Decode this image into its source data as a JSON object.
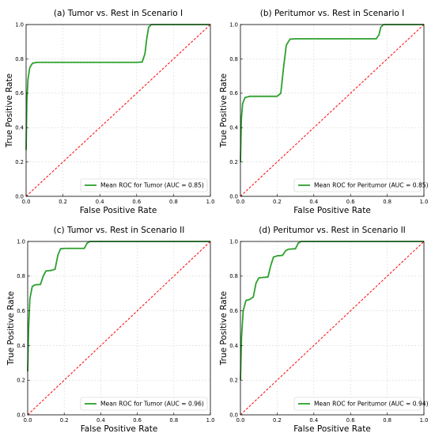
{
  "chart_data": [
    {
      "type": "line",
      "title": "(a) Tumor vs. Rest in Scenario I",
      "xlabel": "False Positive Rate",
      "ylabel": "True Positive Rate",
      "xlim": [
        0,
        1
      ],
      "ylim": [
        0,
        1
      ],
      "xticks": [
        "0.0",
        "0.2",
        "0.4",
        "0.6",
        "0.8",
        "1.0"
      ],
      "yticks": [
        "0.0",
        "0.2",
        "0.4",
        "0.6",
        "0.8",
        "1.0"
      ],
      "grid": true,
      "legend_position": "lower-right",
      "series": [
        {
          "name": "Mean ROC for Tumor (AUC = 0.85)",
          "color": "#2ca02c",
          "points": [
            [
              0,
              0.27
            ],
            [
              0.004,
              0.55
            ],
            [
              0.01,
              0.68
            ],
            [
              0.02,
              0.75
            ],
            [
              0.035,
              0.775
            ],
            [
              0.06,
              0.78
            ],
            [
              0.2,
              0.78
            ],
            [
              0.4,
              0.78
            ],
            [
              0.6,
              0.78
            ],
            [
              0.63,
              0.782
            ],
            [
              0.645,
              0.83
            ],
            [
              0.655,
              0.92
            ],
            [
              0.665,
              0.985
            ],
            [
              0.68,
              1.0
            ],
            [
              1.0,
              1.0
            ]
          ]
        }
      ],
      "chance_line_color": "#ff0000"
    },
    {
      "type": "line",
      "title": "(b) Peritumor vs. Rest in Scenario I",
      "xlabel": "False Positive Rate",
      "ylabel": "True Positive Rate",
      "xlim": [
        0,
        1
      ],
      "ylim": [
        0,
        1
      ],
      "xticks": [
        "0.0",
        "0.2",
        "0.4",
        "0.6",
        "0.8",
        "1.0"
      ],
      "yticks": [
        "0.0",
        "0.2",
        "0.4",
        "0.6",
        "0.8",
        "1.0"
      ],
      "grid": true,
      "legend_position": "lower-right",
      "series": [
        {
          "name": "Mean ROC for Peritumor (AUC = 0.85)",
          "color": "#2ca02c",
          "points": [
            [
              0,
              0.2
            ],
            [
              0.005,
              0.45
            ],
            [
              0.012,
              0.54
            ],
            [
              0.025,
              0.575
            ],
            [
              0.05,
              0.582
            ],
            [
              0.2,
              0.582
            ],
            [
              0.22,
              0.6
            ],
            [
              0.235,
              0.75
            ],
            [
              0.25,
              0.88
            ],
            [
              0.27,
              0.915
            ],
            [
              0.3,
              0.917
            ],
            [
              0.5,
              0.917
            ],
            [
              0.74,
              0.917
            ],
            [
              0.755,
              0.94
            ],
            [
              0.765,
              0.985
            ],
            [
              0.78,
              1.0
            ],
            [
              1.0,
              1.0
            ]
          ]
        }
      ],
      "chance_line_color": "#ff0000"
    },
    {
      "type": "line",
      "title": "(c) Tumor vs. Rest in Scenario II",
      "xlabel": "False Positive Rate",
      "ylabel": "True Positive Rate",
      "xlim": [
        0,
        1
      ],
      "ylim": [
        0,
        1
      ],
      "xticks": [
        "0.0",
        "0.2",
        "0.4",
        "0.6",
        "0.8",
        "1.0"
      ],
      "yticks": [
        "0.0",
        "0.2",
        "0.4",
        "0.6",
        "0.8",
        "1.0"
      ],
      "grid": true,
      "legend_position": "lower-right",
      "series": [
        {
          "name": "Mean ROC for Tumor (AUC = 0.96)",
          "color": "#2ca02c",
          "points": [
            [
              0,
              0.25
            ],
            [
              0.005,
              0.5
            ],
            [
              0.012,
              0.67
            ],
            [
              0.025,
              0.74
            ],
            [
              0.04,
              0.75
            ],
            [
              0.07,
              0.752
            ],
            [
              0.085,
              0.8
            ],
            [
              0.1,
              0.83
            ],
            [
              0.13,
              0.833
            ],
            [
              0.15,
              0.84
            ],
            [
              0.165,
              0.92
            ],
            [
              0.18,
              0.958
            ],
            [
              0.2,
              0.96
            ],
            [
              0.31,
              0.96
            ],
            [
              0.325,
              0.99
            ],
            [
              0.34,
              1.0
            ],
            [
              1.0,
              1.0
            ]
          ]
        }
      ],
      "chance_line_color": "#ff0000"
    },
    {
      "type": "line",
      "title": "(d) Peritumor vs. Rest in Scenario II",
      "xlabel": "False Positive Rate",
      "ylabel": "True Positive Rate",
      "xlim": [
        0,
        1
      ],
      "ylim": [
        0,
        1
      ],
      "xticks": [
        "0.0",
        "0.2",
        "0.4",
        "0.6",
        "0.8",
        "1.0"
      ],
      "yticks": [
        "0.0",
        "0.2",
        "0.4",
        "0.6",
        "0.8",
        "1.0"
      ],
      "grid": true,
      "legend_position": "lower-right",
      "series": [
        {
          "name": "Mean ROC for Peritumor (AUC = 0.94)",
          "color": "#2ca02c",
          "points": [
            [
              0,
              0.2
            ],
            [
              0.006,
              0.45
            ],
            [
              0.015,
              0.6
            ],
            [
              0.03,
              0.66
            ],
            [
              0.05,
              0.665
            ],
            [
              0.07,
              0.68
            ],
            [
              0.085,
              0.76
            ],
            [
              0.1,
              0.79
            ],
            [
              0.15,
              0.795
            ],
            [
              0.165,
              0.86
            ],
            [
              0.18,
              0.91
            ],
            [
              0.2,
              0.917
            ],
            [
              0.23,
              0.92
            ],
            [
              0.245,
              0.945
            ],
            [
              0.26,
              0.955
            ],
            [
              0.3,
              0.958
            ],
            [
              0.315,
              0.99
            ],
            [
              0.33,
              1.0
            ],
            [
              1.0,
              1.0
            ]
          ]
        }
      ],
      "chance_line_color": "#ff0000"
    }
  ]
}
